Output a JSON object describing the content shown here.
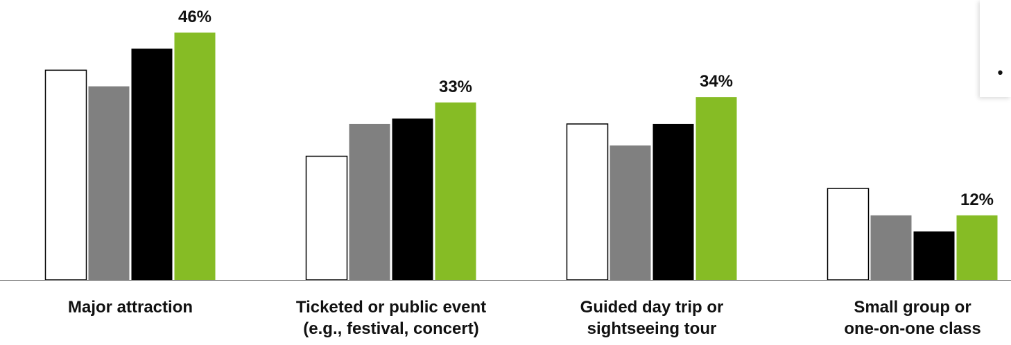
{
  "colors": {
    "series_1": "#ffffff",
    "series_2": "#808080",
    "series_3": "#000000",
    "series_4": "#86bc25",
    "outline": "#000000",
    "axis": "#555555"
  },
  "legend": {
    "bullet": "•"
  },
  "chart_data": {
    "type": "bar",
    "title": "",
    "xlabel": "",
    "ylabel": "",
    "ylim": [
      0,
      46
    ],
    "grid": false,
    "categories": [
      [
        "Major attraction"
      ],
      [
        "Ticketed or public event",
        "(e.g., festival, concert)"
      ],
      [
        "Guided day trip or",
        "sightseeing tour"
      ],
      [
        "Small group or",
        "one-on-one class"
      ]
    ],
    "series": [
      {
        "values": [
          39,
          23,
          29,
          17
        ]
      },
      {
        "values": [
          36,
          29,
          25,
          12
        ]
      },
      {
        "values": [
          43,
          30,
          29,
          9
        ]
      },
      {
        "values": [
          46,
          33,
          34,
          12
        ]
      }
    ],
    "data_labels": {
      "series_index": 3,
      "labels": [
        "46%",
        "33%",
        "34%",
        "12%"
      ]
    }
  }
}
